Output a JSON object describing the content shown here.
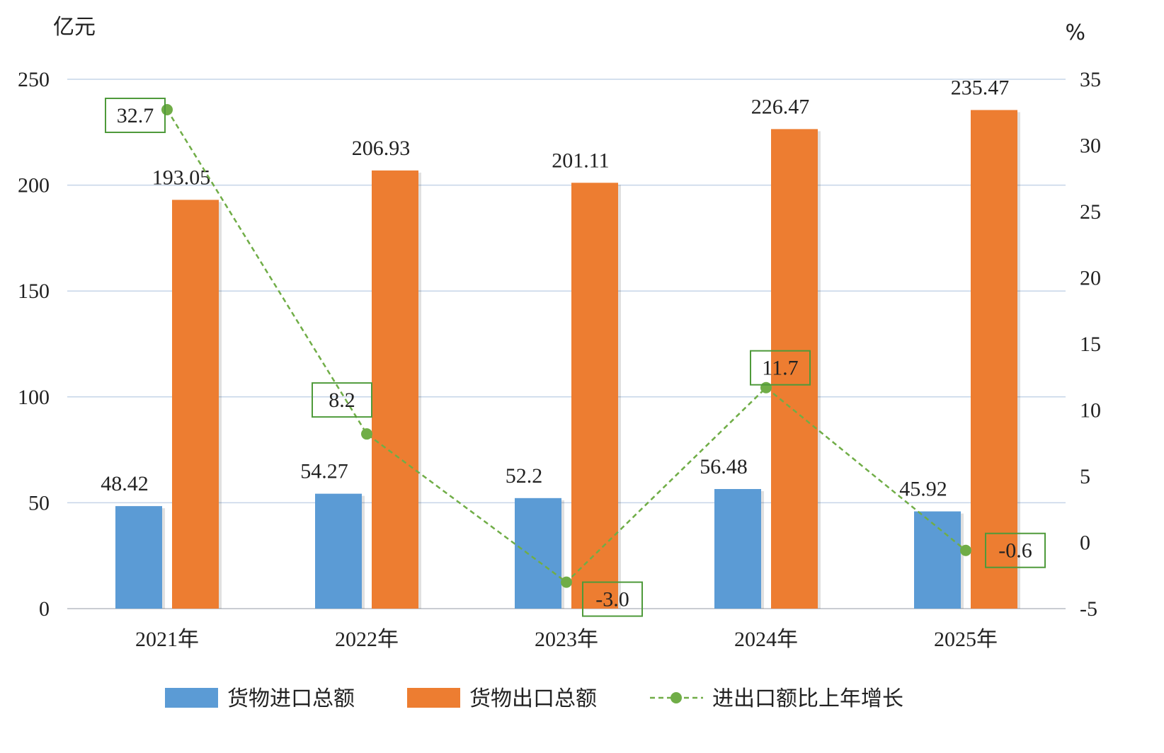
{
  "chart_data": {
    "type": "bar",
    "categories": [
      "2021年",
      "2022年",
      "2023年",
      "2024年",
      "2025年"
    ],
    "series": [
      {
        "name": "货物进口总额",
        "type": "bar",
        "axis": "left",
        "color": "#5b9bd5",
        "values": [
          48.42,
          54.27,
          52.2,
          56.48,
          45.92
        ],
        "labels": [
          "48.42",
          "54.27",
          "52.2",
          "56.48",
          "45.92"
        ]
      },
      {
        "name": "货物出口总额",
        "type": "bar",
        "axis": "left",
        "color": "#ed7d31",
        "values": [
          193.05,
          206.93,
          201.11,
          226.47,
          235.47
        ],
        "labels": [
          "193.05",
          "206.93",
          "201.11",
          "226.47",
          "235.47"
        ]
      },
      {
        "name": "进出口额比上年增长",
        "type": "line",
        "axis": "right",
        "style": "dashed",
        "color": "#70ad47",
        "values": [
          32.7,
          8.2,
          -3.0,
          11.7,
          -0.6
        ],
        "labels": [
          "32.7",
          "8.2",
          "-3.0",
          "11.7",
          "-0.6"
        ]
      }
    ],
    "y_left": {
      "unit": "亿元",
      "range": [
        0,
        250
      ],
      "ticks": [
        "0",
        "50",
        "100",
        "150",
        "200",
        "250"
      ]
    },
    "y_right": {
      "unit": "%",
      "range": [
        -5,
        35
      ],
      "ticks": [
        "-5",
        "0",
        "5",
        "10",
        "15",
        "20",
        "25",
        "30",
        "35"
      ]
    },
    "grid": true,
    "legend_position": "bottom"
  }
}
